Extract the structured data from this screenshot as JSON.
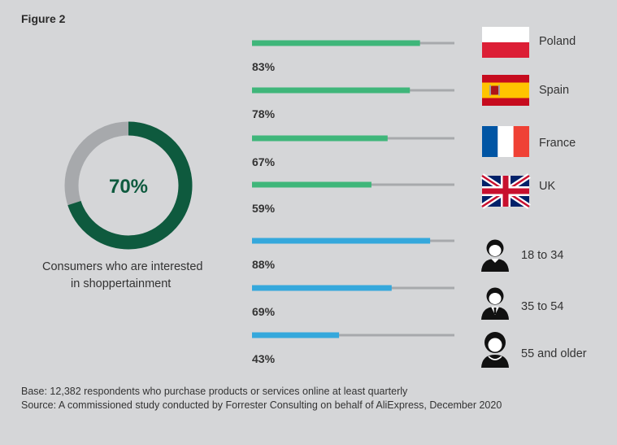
{
  "figure_label": "Figure 2",
  "colors": {
    "background": "#d5d6d8",
    "donut_value": "#0e5a3e",
    "donut_rest": "#a7a9ac",
    "country_bar": "#3fb67a",
    "age_bar": "#35a8dc",
    "track": "#a7a9ac"
  },
  "chart_data": [
    {
      "type": "pie",
      "style": "donut",
      "value_label": "70%",
      "values": [
        70,
        30
      ],
      "caption_lines": [
        "Consumers who are interested",
        "in shoppertainment"
      ]
    },
    {
      "type": "bar",
      "orientation": "horizontal",
      "ylim": [
        0,
        100
      ],
      "groups": [
        {
          "name": "country",
          "color": "#3fb67a",
          "items": [
            {
              "category": "Poland",
              "value": 83,
              "value_label": "83%",
              "icon": "poland-flag-icon"
            },
            {
              "category": "Spain",
              "value": 78,
              "value_label": "78%",
              "icon": "spain-flag-icon"
            },
            {
              "category": "France",
              "value": 67,
              "value_label": "67%",
              "icon": "france-flag-icon"
            },
            {
              "category": "UK",
              "value": 59,
              "value_label": "59%",
              "icon": "uk-flag-icon"
            }
          ]
        },
        {
          "name": "age",
          "color": "#35a8dc",
          "items": [
            {
              "category": "18 to 34",
              "value": 88,
              "value_label": "88%",
              "icon": "young-person-icon"
            },
            {
              "category": "35 to 54",
              "value": 69,
              "value_label": "69%",
              "icon": "middle-aged-person-icon"
            },
            {
              "category": "55 and older",
              "value": 43,
              "value_label": "43%",
              "icon": "older-person-icon"
            }
          ]
        }
      ]
    }
  ],
  "footnote": {
    "base": "Base: 12,382 respondents who purchase products or services online at least quarterly",
    "source": "Source: A commissioned study conducted by Forrester Consulting on behalf of AliExpress, December 2020"
  }
}
